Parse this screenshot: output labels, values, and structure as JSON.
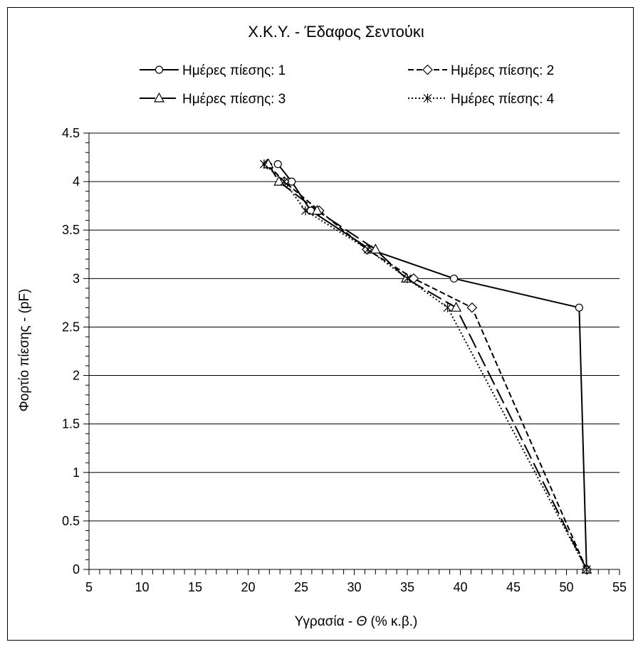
{
  "chart_data": {
    "type": "line",
    "title": "Χ.Κ.Υ. - Έδαφος Σεντούκι",
    "xlabel_prefix": "Υγρασία - ",
    "xlabel_symbol": "Θ",
    "xlabel_suffix": " (% κ.β.)",
    "ylabel": "Φορτίο πίεσης - (pF)",
    "xlim": [
      5,
      55
    ],
    "ylim": [
      0,
      4.5
    ],
    "x_ticks": [
      "5",
      "10",
      "15",
      "20",
      "25",
      "30",
      "35",
      "40",
      "45",
      "50",
      "55"
    ],
    "y_ticks": [
      "0",
      "0.5",
      "1",
      "1.5",
      "2",
      "2.5",
      "3",
      "3.5",
      "4",
      "4.5"
    ],
    "grid": "horizontal",
    "legend_position": "top",
    "series": [
      {
        "name": "Ημέρες πίεσης: 1",
        "marker": "circle",
        "dash": "solid",
        "points": [
          [
            51.9,
            0
          ],
          [
            51.2,
            2.7
          ],
          [
            39.4,
            3.0
          ],
          [
            31.5,
            3.3
          ],
          [
            25.9,
            3.7
          ],
          [
            24.1,
            4.0
          ],
          [
            22.8,
            4.18
          ]
        ]
      },
      {
        "name": "Ημέρες πίεσης: 2",
        "marker": "diamond",
        "dash": "dashed",
        "points": [
          [
            51.9,
            0
          ],
          [
            41.1,
            2.7
          ],
          [
            35.6,
            3.0
          ],
          [
            31.2,
            3.3
          ],
          [
            26.7,
            3.7
          ],
          [
            23.4,
            4.0
          ],
          [
            21.8,
            4.18
          ]
        ]
      },
      {
        "name": "Ημέρες πίεσης: 3",
        "marker": "triangle",
        "dash": "longdash",
        "points": [
          [
            51.9,
            0
          ],
          [
            39.6,
            2.7
          ],
          [
            34.9,
            3.0
          ],
          [
            32.0,
            3.3
          ],
          [
            26.5,
            3.7
          ],
          [
            22.9,
            4.0
          ],
          [
            21.9,
            4.18
          ]
        ]
      },
      {
        "name": "Ημέρες πίεσης: 4",
        "marker": "asterisk",
        "dash": "dotted",
        "points": [
          [
            51.9,
            0
          ],
          [
            38.8,
            2.7
          ],
          [
            35.0,
            3.0
          ],
          [
            31.3,
            3.3
          ],
          [
            25.4,
            3.7
          ],
          [
            23.4,
            4.0
          ],
          [
            21.5,
            4.18
          ]
        ]
      }
    ]
  }
}
